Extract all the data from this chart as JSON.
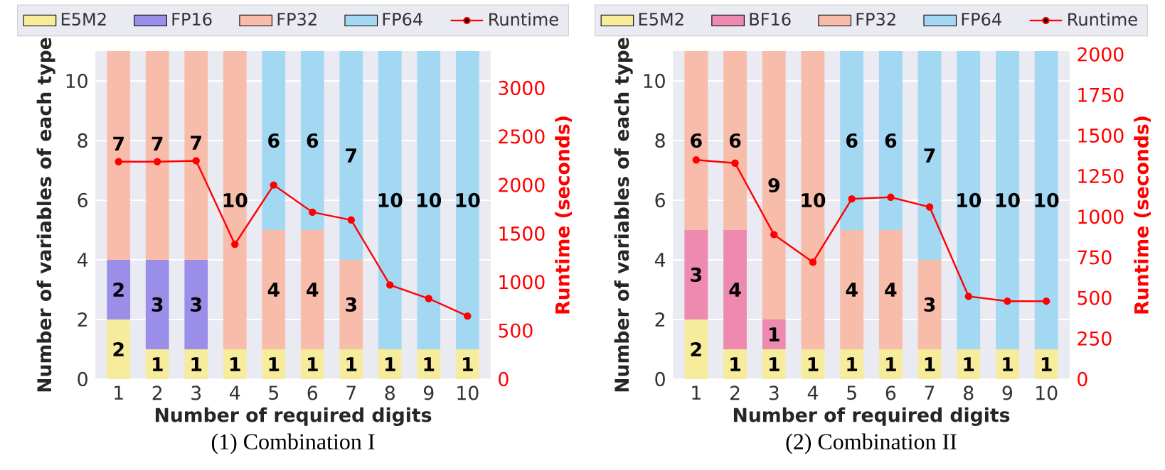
{
  "chart_data": [
    {
      "type": "bar",
      "stacked": true,
      "title": "(1) Combination I",
      "xlabel": "Number of required digits",
      "ylabel": "Number of variables of each type",
      "y2label": "Runtime (seconds)",
      "categories": [
        "1",
        "2",
        "3",
        "4",
        "5",
        "6",
        "7",
        "8",
        "9",
        "10"
      ],
      "ylim": [
        0,
        11
      ],
      "yticks": [
        0,
        2,
        4,
        6,
        8,
        10
      ],
      "y2lim": [
        0,
        3380
      ],
      "y2ticks": [
        0,
        500,
        1000,
        1500,
        2000,
        2500,
        3000
      ],
      "grid": "y",
      "legend": "top",
      "marker": "circle",
      "series": [
        {
          "name": "E5M2",
          "color": "#f6ec9c",
          "values": [
            2,
            1,
            1,
            1,
            1,
            1,
            1,
            1,
            1,
            1
          ],
          "value_labels": [
            "2",
            "1",
            "1",
            "1",
            "1",
            "1",
            "1",
            "1",
            "1",
            "1"
          ]
        },
        {
          "name": "FP16",
          "color": "#9a8ee9",
          "values": [
            2,
            3,
            3,
            null,
            null,
            null,
            null,
            null,
            null,
            null
          ],
          "value_labels": [
            "2",
            "3",
            "3",
            null,
            null,
            null,
            null,
            null,
            null,
            null
          ]
        },
        {
          "name": "FP32",
          "color": "#f8bcab",
          "values": [
            7,
            7,
            7,
            10,
            4,
            4,
            3,
            null,
            null,
            null
          ],
          "value_labels": [
            "7",
            "7",
            "7",
            "10",
            "4",
            "4",
            "3",
            null,
            null,
            null
          ]
        },
        {
          "name": "FP64",
          "color": "#a3d8f3",
          "values": [
            null,
            null,
            null,
            null,
            6,
            6,
            7,
            10,
            10,
            10
          ],
          "value_labels": [
            null,
            null,
            null,
            null,
            "6",
            "6",
            "7",
            "10",
            "10",
            "10"
          ]
        },
        {
          "name": "Runtime",
          "type": "line",
          "axis": "y2",
          "color": "#ff0000",
          "values": [
            2240,
            2240,
            2250,
            1390,
            2000,
            1720,
            1640,
            970,
            830,
            650
          ]
        }
      ]
    },
    {
      "type": "bar",
      "stacked": true,
      "title": "(2) Combination II",
      "xlabel": "Number of required digits",
      "ylabel": "Number of variables of each type",
      "y2label": "Runtime (seconds)",
      "categories": [
        "1",
        "2",
        "3",
        "4",
        "5",
        "6",
        "7",
        "8",
        "9",
        "10"
      ],
      "ylim": [
        0,
        11
      ],
      "yticks": [
        0,
        2,
        4,
        6,
        8,
        10
      ],
      "y2lim": [
        0,
        2020
      ],
      "y2ticks": [
        0,
        250,
        500,
        750,
        1000,
        1250,
        1500,
        1750,
        2000
      ],
      "grid": "y",
      "legend": "top",
      "marker": "circle",
      "series": [
        {
          "name": "E5M2",
          "color": "#f6ec9c",
          "values": [
            2,
            1,
            1,
            1,
            1,
            1,
            1,
            1,
            1,
            1
          ],
          "value_labels": [
            "2",
            "1",
            "1",
            "1",
            "1",
            "1",
            "1",
            "1",
            "1",
            "1"
          ]
        },
        {
          "name": "BF16",
          "color": "#ee8aaf",
          "values": [
            3,
            4,
            1,
            null,
            null,
            null,
            null,
            null,
            null,
            null
          ],
          "value_labels": [
            "3",
            "4",
            "1",
            null,
            null,
            null,
            null,
            null,
            null,
            null
          ]
        },
        {
          "name": "FP32",
          "color": "#f8bcab",
          "values": [
            6,
            6,
            9,
            10,
            4,
            4,
            3,
            null,
            null,
            null
          ],
          "value_labels": [
            "6",
            "6",
            "9",
            "10",
            "4",
            "4",
            "3",
            null,
            null,
            null
          ]
        },
        {
          "name": "FP64",
          "color": "#a3d8f3",
          "values": [
            null,
            null,
            null,
            null,
            6,
            6,
            7,
            10,
            10,
            10
          ],
          "value_labels": [
            null,
            null,
            null,
            null,
            "6",
            "6",
            "7",
            "10",
            "10",
            "10"
          ]
        },
        {
          "name": "Runtime",
          "type": "line",
          "axis": "y2",
          "color": "#ff0000",
          "values": [
            1350,
            1330,
            890,
            720,
            1110,
            1120,
            1060,
            510,
            480,
            480
          ]
        }
      ]
    }
  ]
}
